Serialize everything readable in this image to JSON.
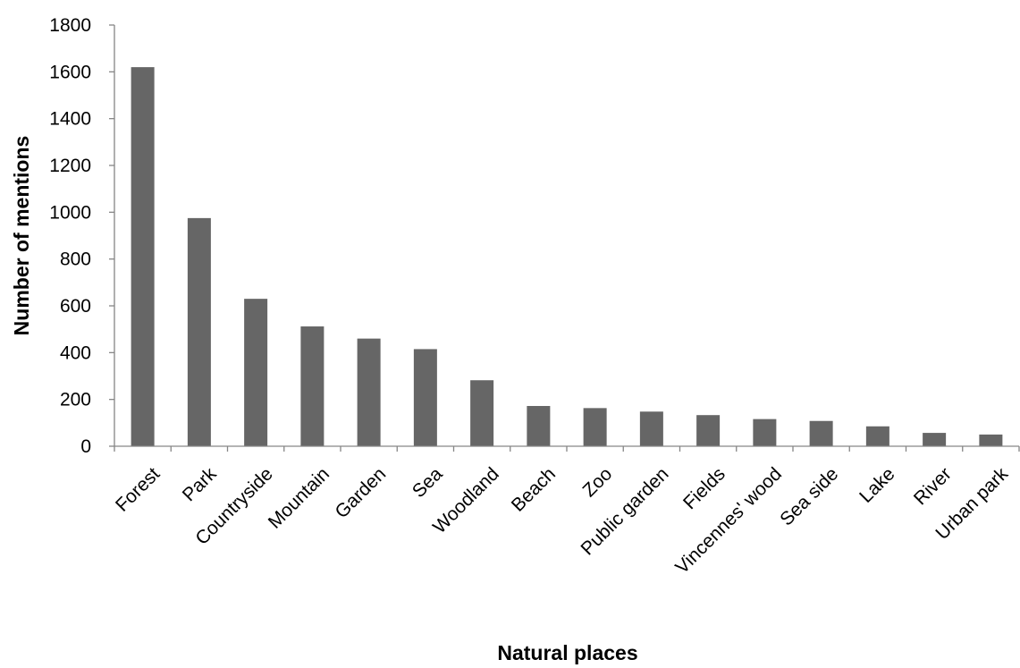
{
  "chart_data": {
    "type": "bar",
    "title": "",
    "xlabel": "Natural places",
    "ylabel": "Number of mentions",
    "ylim": [
      0,
      1800
    ],
    "yticks": [
      0,
      200,
      400,
      600,
      800,
      1000,
      1200,
      1400,
      1600,
      1800
    ],
    "grid": false,
    "legend": "none",
    "bar_color": "#666666",
    "axis_color": "#868686",
    "categories": [
      "Forest",
      "Park",
      "Countryside",
      "Mountain",
      "Garden",
      "Sea",
      "Woodland",
      "Beach",
      "Zoo",
      "Public garden",
      "Fields",
      "Vincennes' wood",
      "Sea side",
      "Lake",
      "River",
      "Urban park"
    ],
    "values": [
      1620,
      975,
      630,
      512,
      460,
      415,
      282,
      172,
      163,
      148,
      133,
      116,
      108,
      85,
      57,
      50
    ]
  }
}
